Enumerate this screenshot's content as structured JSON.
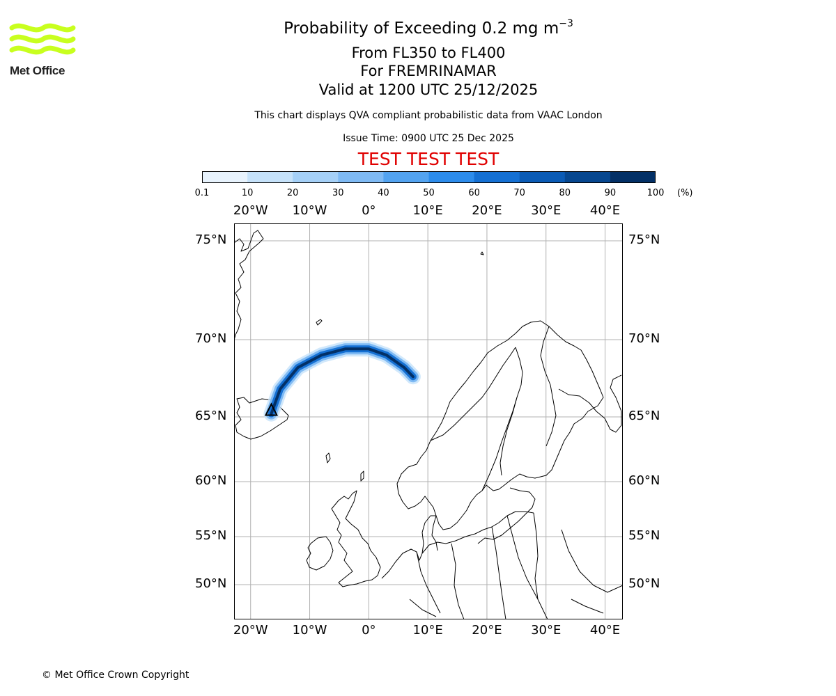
{
  "header": {
    "title": "Probability of Exceeding 0.2 mg m",
    "title_superscript": "−3",
    "subtitle_1": "From FL350 to FL400",
    "subtitle_2": "For FREMRINAMAR",
    "subtitle_3": "Valid at 1200 UTC 25/12/2025",
    "disclaimer": "This chart displays QVA compliant probabilistic data from VAAC London",
    "issue_time": "Issue Time: 0900 UTC 25 Dec 2025",
    "test_banner": "TEST TEST TEST"
  },
  "logo": {
    "text": "Met Office",
    "color": "#c8ff1e"
  },
  "footer": {
    "copyright": "© Met Office Crown Copyright"
  },
  "colorbar": {
    "ticks": [
      "0.1",
      "10",
      "20",
      "30",
      "40",
      "50",
      "60",
      "70",
      "80",
      "90",
      "100"
    ],
    "unit": "(%)",
    "colors": [
      "#e8f3fd",
      "#c6e2fa",
      "#a5d0f7",
      "#7fbaf4",
      "#53a3f0",
      "#2d8ceb",
      "#1570d3",
      "#0b5bb5",
      "#07478f",
      "#033066"
    ]
  },
  "map": {
    "lon_labels": [
      "20°W",
      "10°W",
      "0°",
      "10°E",
      "20°E",
      "30°E",
      "40°E"
    ],
    "lat_labels": [
      "75°N",
      "70°N",
      "65°N",
      "60°N",
      "55°N",
      "50°N"
    ],
    "plume": {
      "color_ramp": "blue probability",
      "path_lonlat": [
        [
          -16.5,
          65.2
        ],
        [
          -15,
          66.8
        ],
        [
          -12,
          68.2
        ],
        [
          -8,
          69.0
        ],
        [
          -4,
          69.4
        ],
        [
          0,
          69.4
        ],
        [
          3,
          69.0
        ],
        [
          6,
          68.2
        ],
        [
          7.5,
          67.6
        ]
      ]
    }
  }
}
